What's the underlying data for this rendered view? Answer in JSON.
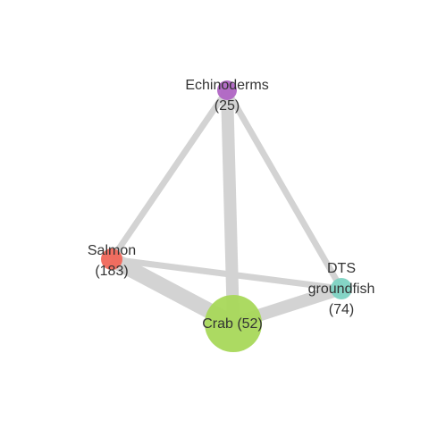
{
  "network": {
    "edge_color": "#d3d3d3",
    "nodes": [
      {
        "id": "echinoderms",
        "label_lines": [
          "Echinoderms",
          "(25)"
        ],
        "value": 25,
        "color": "#b065c4"
      },
      {
        "id": "salmon",
        "label_lines": [
          "Salmon",
          "(183)"
        ],
        "value": 183,
        "color": "#f0675a"
      },
      {
        "id": "dts",
        "label_lines": [
          "DTS",
          "groundfish",
          "(74)"
        ],
        "value": 74,
        "color": "#7ed3c3"
      },
      {
        "id": "crab",
        "label_lines": [
          "Crab (52)"
        ],
        "value": 52,
        "color": "#a8d85a"
      }
    ],
    "edges": [
      {
        "source": "echinoderms",
        "target": "salmon",
        "weight": 2
      },
      {
        "source": "echinoderms",
        "target": "dts",
        "weight": 2
      },
      {
        "source": "echinoderms",
        "target": "crab",
        "weight": 4
      },
      {
        "source": "salmon",
        "target": "dts",
        "weight": 2
      },
      {
        "source": "salmon",
        "target": "crab",
        "weight": 5
      },
      {
        "source": "dts",
        "target": "crab",
        "weight": 4
      }
    ]
  }
}
